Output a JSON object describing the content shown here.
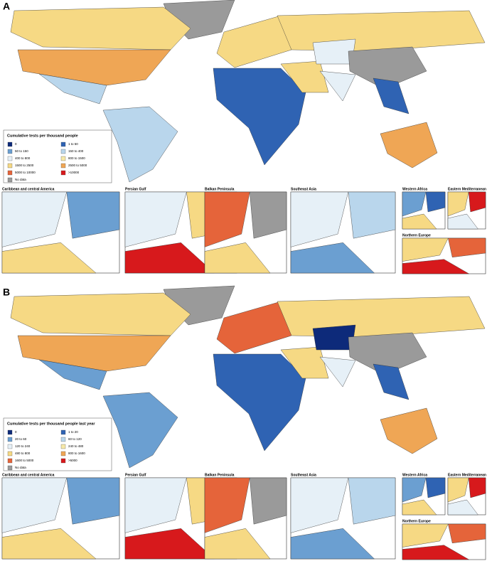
{
  "panels": [
    {
      "label": "A",
      "legend": {
        "title": "Cumulative tests per thousand people",
        "items": [
          {
            "label": "0",
            "color": "#0d2a7a"
          },
          {
            "label": "1 to 50",
            "color": "#2f63b3"
          },
          {
            "label": "50 to 150",
            "color": "#6b9fd1"
          },
          {
            "label": "150 to 400",
            "color": "#b9d6ec"
          },
          {
            "label": "400 to 800",
            "color": "#e6f0f7"
          },
          {
            "label": "800 to 1500",
            "color": "#f7e9a8"
          },
          {
            "label": "1500 to 2500",
            "color": "#f6d984"
          },
          {
            "label": "2500 to 5000",
            "color": "#efa655"
          },
          {
            "label": "5000 to 10000",
            "color": "#e5643a"
          },
          {
            "label": ">10000",
            "color": "#d7191c"
          },
          {
            "label": "No data",
            "color": "#9a9a9a"
          }
        ]
      },
      "insets": [
        "Caribbean and central America",
        "Persian Gulf",
        "Balkan Peninsula",
        "Southeast Asia",
        "Western Africa",
        "Eastern Mediterranean",
        "Northern Europe"
      ]
    },
    {
      "label": "B",
      "legend": {
        "title": "Cumulative tests per thousand people last year",
        "items": [
          {
            "label": "0",
            "color": "#0d2a7a"
          },
          {
            "label": "1 to 20",
            "color": "#2f63b3"
          },
          {
            "label": "20 to 60",
            "color": "#6b9fd1"
          },
          {
            "label": "60 to 120",
            "color": "#b9d6ec"
          },
          {
            "label": "120 to 240",
            "color": "#e6f0f7"
          },
          {
            "label": "240 to 480",
            "color": "#f7e9a8"
          },
          {
            "label": "480 to 800",
            "color": "#f6d984"
          },
          {
            "label": "800 to 1600",
            "color": "#efa655"
          },
          {
            "label": "1600 to 5000",
            "color": "#e5643a"
          },
          {
            "label": ">5000",
            "color": "#d7191c"
          },
          {
            "label": "No data",
            "color": "#9a9a9a"
          }
        ]
      },
      "insets": [
        "Caribbean and central America",
        "Persian Gulf",
        "Balkan Peninsula",
        "Southeast Asia",
        "Western Africa",
        "Eastern Mediterranean",
        "Northern Europe"
      ]
    }
  ]
}
